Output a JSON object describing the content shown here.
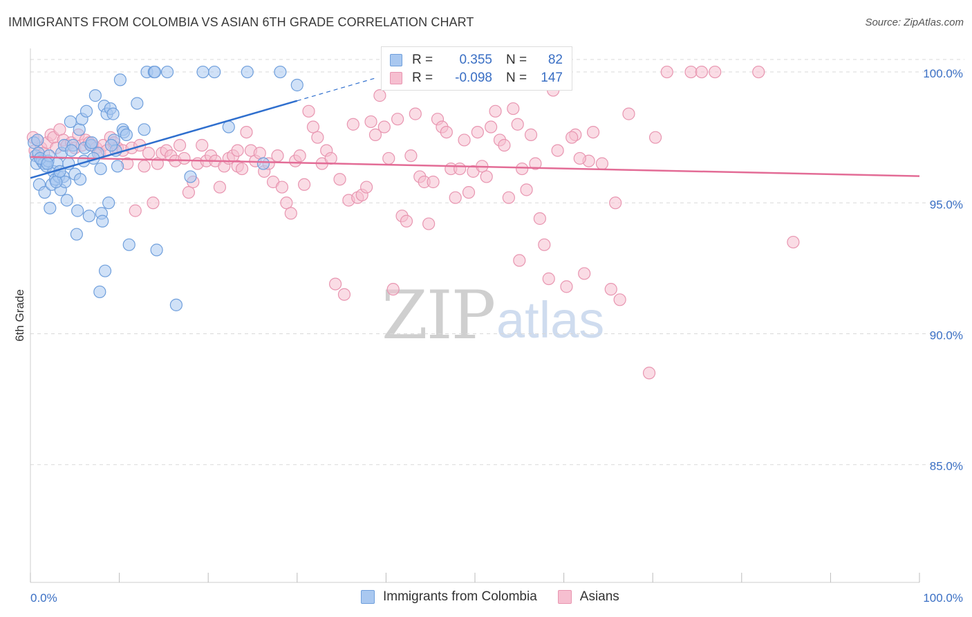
{
  "title": "IMMIGRANTS FROM COLOMBIA VS ASIAN 6TH GRADE CORRELATION CHART",
  "source": "Source: ZipAtlas.com",
  "watermark": {
    "zip": "ZIP",
    "atlas": "atlas"
  },
  "legend": {
    "rows": [
      {
        "r_label": "R =",
        "r_value": "0.355",
        "n_label": "N =",
        "n_value": "82"
      },
      {
        "r_label": "R =",
        "r_value": "-0.098",
        "n_label": "N =",
        "n_value": "147"
      }
    ]
  },
  "bottom_legend": [
    "Immigrants from Colombia",
    "Asians"
  ],
  "colors": {
    "blue_fill": "#a9c8f0",
    "blue_stroke": "#6f9fdc",
    "blue_line": "#2f6fce",
    "pink_fill": "#f6bfd0",
    "pink_stroke": "#e895b0",
    "pink_line": "#e36c96",
    "label": "#3a6fc4",
    "grid": "#d9d9d9"
  },
  "chart_data": {
    "type": "scatter",
    "title": "IMMIGRANTS FROM COLOMBIA VS ASIAN 6TH GRADE CORRELATION CHART",
    "xlabel": "",
    "ylabel": "6th Grade",
    "xlim": [
      0,
      100
    ],
    "ylim": [
      80.5,
      100.9
    ],
    "x_tick_labels": [
      "0.0%",
      "100.0%"
    ],
    "y_ticks": [
      100,
      95,
      90,
      85
    ],
    "y_tick_labels": [
      "100.0%",
      "95.0%",
      "90.0%",
      "85.0%"
    ],
    "series": [
      {
        "name": "Immigrants from Colombia",
        "points": [
          [
            0.4,
            97.3
          ],
          [
            0.6,
            96.8
          ],
          [
            0.7,
            96.5
          ],
          [
            0.9,
            96.9
          ],
          [
            1.0,
            95.7
          ],
          [
            1.3,
            96.6
          ],
          [
            1.5,
            96.5
          ],
          [
            1.6,
            95.4
          ],
          [
            1.8,
            96.4
          ],
          [
            2.0,
            96.6
          ],
          [
            2.2,
            94.8
          ],
          [
            2.4,
            95.7
          ],
          [
            2.6,
            96.2
          ],
          [
            2.8,
            95.9
          ],
          [
            3.0,
            96.5
          ],
          [
            3.2,
            96.0
          ],
          [
            3.4,
            95.5
          ],
          [
            3.5,
            96.9
          ],
          [
            3.7,
            96.0
          ],
          [
            3.8,
            97.2
          ],
          [
            3.9,
            95.8
          ],
          [
            4.1,
            95.1
          ],
          [
            4.3,
            96.5
          ],
          [
            4.5,
            98.1
          ],
          [
            4.8,
            97.2
          ],
          [
            5.0,
            96.1
          ],
          [
            5.2,
            93.8
          ],
          [
            5.3,
            94.7
          ],
          [
            5.5,
            97.8
          ],
          [
            5.6,
            95.9
          ],
          [
            5.8,
            98.2
          ],
          [
            6.0,
            96.6
          ],
          [
            6.1,
            97.1
          ],
          [
            6.3,
            98.5
          ],
          [
            6.6,
            94.5
          ],
          [
            6.8,
            97.2
          ],
          [
            7.3,
            99.1
          ],
          [
            7.6,
            96.9
          ],
          [
            7.8,
            91.6
          ],
          [
            7.9,
            96.3
          ],
          [
            8.0,
            94.6
          ],
          [
            8.1,
            94.3
          ],
          [
            8.3,
            98.7
          ],
          [
            8.4,
            92.4
          ],
          [
            8.6,
            98.4
          ],
          [
            8.8,
            95.0
          ],
          [
            9.0,
            98.6
          ],
          [
            9.3,
            98.4
          ],
          [
            9.4,
            97.4
          ],
          [
            9.6,
            97.0
          ],
          [
            9.8,
            96.4
          ],
          [
            10.1,
            99.7
          ],
          [
            10.4,
            97.8
          ],
          [
            10.5,
            97.7
          ],
          [
            11.1,
            93.4
          ],
          [
            12.0,
            98.8
          ],
          [
            12.8,
            97.8
          ],
          [
            13.1,
            100.0
          ],
          [
            13.9,
            100.0
          ],
          [
            14.0,
            100.0
          ],
          [
            14.2,
            93.2
          ],
          [
            15.4,
            100.0
          ],
          [
            16.4,
            91.1
          ],
          [
            18.0,
            96.0
          ],
          [
            19.4,
            100.0
          ],
          [
            20.7,
            100.0
          ],
          [
            22.3,
            97.9
          ],
          [
            24.4,
            100.0
          ],
          [
            26.2,
            96.5
          ],
          [
            28.1,
            100.0
          ],
          [
            30.0,
            99.5
          ],
          [
            1.1,
            96.7
          ],
          [
            2.1,
            96.8
          ],
          [
            2.9,
            95.8
          ],
          [
            3.3,
            96.2
          ],
          [
            6.9,
            97.3
          ],
          [
            7.1,
            96.7
          ],
          [
            9.1,
            97.2
          ],
          [
            0.8,
            97.4
          ],
          [
            1.9,
            96.5
          ],
          [
            4.6,
            97.0
          ],
          [
            10.8,
            97.6
          ]
        ]
      },
      {
        "name": "Asians",
        "points": [
          [
            0.3,
            97.5
          ],
          [
            0.5,
            97.0
          ],
          [
            0.8,
            97.4
          ],
          [
            1.2,
            97.1
          ],
          [
            1.5,
            96.9
          ],
          [
            1.9,
            97.3
          ],
          [
            2.3,
            97.6
          ],
          [
            2.6,
            97.5
          ],
          [
            2.9,
            97.1
          ],
          [
            3.3,
            97.8
          ],
          [
            3.7,
            97.4
          ],
          [
            4.1,
            97.2
          ],
          [
            4.6,
            97.3
          ],
          [
            5.0,
            97.1
          ],
          [
            5.4,
            97.6
          ],
          [
            5.8,
            97.2
          ],
          [
            6.2,
            97.4
          ],
          [
            6.6,
            97.3
          ],
          [
            7.0,
            97.2
          ],
          [
            7.4,
            97.1
          ],
          [
            7.8,
            96.9
          ],
          [
            8.2,
            97.2
          ],
          [
            8.6,
            97.0
          ],
          [
            9.0,
            97.5
          ],
          [
            9.4,
            97.3
          ],
          [
            9.8,
            97.1
          ],
          [
            10.4,
            97.0
          ],
          [
            10.9,
            96.5
          ],
          [
            11.4,
            97.1
          ],
          [
            11.8,
            94.7
          ],
          [
            12.3,
            97.2
          ],
          [
            12.8,
            96.4
          ],
          [
            13.3,
            96.9
          ],
          [
            13.8,
            95.0
          ],
          [
            14.3,
            96.5
          ],
          [
            14.8,
            96.9
          ],
          [
            15.3,
            97.0
          ],
          [
            15.8,
            96.8
          ],
          [
            16.3,
            96.6
          ],
          [
            16.8,
            97.2
          ],
          [
            17.3,
            96.7
          ],
          [
            17.8,
            95.4
          ],
          [
            18.3,
            95.8
          ],
          [
            18.8,
            96.5
          ],
          [
            19.3,
            97.2
          ],
          [
            19.8,
            96.6
          ],
          [
            20.3,
            96.8
          ],
          [
            20.8,
            96.6
          ],
          [
            21.3,
            95.6
          ],
          [
            21.8,
            96.4
          ],
          [
            22.3,
            96.7
          ],
          [
            22.8,
            96.8
          ],
          [
            23.3,
            96.4
          ],
          [
            23.8,
            96.3
          ],
          [
            24.3,
            97.7
          ],
          [
            24.8,
            97.0
          ],
          [
            25.3,
            96.6
          ],
          [
            25.8,
            96.9
          ],
          [
            26.3,
            96.2
          ],
          [
            26.8,
            96.5
          ],
          [
            27.3,
            95.8
          ],
          [
            27.8,
            96.8
          ],
          [
            28.3,
            95.6
          ],
          [
            28.8,
            95.0
          ],
          [
            29.3,
            94.6
          ],
          [
            29.8,
            96.6
          ],
          [
            30.3,
            96.8
          ],
          [
            30.8,
            95.7
          ],
          [
            31.3,
            98.5
          ],
          [
            31.8,
            97.9
          ],
          [
            32.3,
            97.5
          ],
          [
            32.8,
            96.5
          ],
          [
            33.3,
            97.0
          ],
          [
            33.8,
            96.7
          ],
          [
            34.3,
            91.9
          ],
          [
            34.8,
            95.9
          ],
          [
            35.3,
            91.5
          ],
          [
            35.8,
            95.1
          ],
          [
            36.3,
            98.0
          ],
          [
            36.8,
            95.2
          ],
          [
            37.3,
            95.3
          ],
          [
            37.8,
            95.6
          ],
          [
            38.3,
            98.1
          ],
          [
            38.8,
            97.6
          ],
          [
            39.3,
            99.1
          ],
          [
            39.8,
            97.9
          ],
          [
            40.3,
            96.7
          ],
          [
            40.8,
            91.7
          ],
          [
            41.3,
            98.2
          ],
          [
            41.8,
            94.5
          ],
          [
            42.3,
            94.3
          ],
          [
            42.8,
            96.8
          ],
          [
            43.3,
            98.4
          ],
          [
            43.8,
            96.0
          ],
          [
            44.3,
            95.8
          ],
          [
            44.8,
            94.2
          ],
          [
            45.3,
            95.8
          ],
          [
            45.8,
            98.2
          ],
          [
            46.3,
            97.9
          ],
          [
            46.8,
            97.7
          ],
          [
            47.3,
            96.3
          ],
          [
            47.8,
            95.2
          ],
          [
            48.3,
            96.3
          ],
          [
            48.8,
            97.4
          ],
          [
            49.3,
            95.4
          ],
          [
            49.8,
            96.2
          ],
          [
            50.3,
            97.7
          ],
          [
            50.8,
            96.4
          ],
          [
            51.3,
            96.0
          ],
          [
            51.8,
            97.9
          ],
          [
            52.3,
            98.5
          ],
          [
            52.8,
            97.4
          ],
          [
            53.3,
            97.2
          ],
          [
            53.8,
            95.2
          ],
          [
            54.3,
            98.6
          ],
          [
            54.8,
            98.0
          ],
          [
            55.3,
            96.3
          ],
          [
            55.8,
            95.5
          ],
          [
            56.3,
            97.6
          ],
          [
            56.8,
            96.5
          ],
          [
            57.3,
            94.4
          ],
          [
            57.8,
            93.4
          ],
          [
            58.3,
            92.1
          ],
          [
            58.8,
            99.3
          ],
          [
            59.3,
            97.0
          ],
          [
            60.3,
            91.8
          ],
          [
            61.3,
            97.6
          ],
          [
            62.3,
            92.3
          ],
          [
            63.3,
            97.7
          ],
          [
            64.3,
            96.5
          ],
          [
            65.3,
            91.7
          ],
          [
            66.3,
            91.3
          ],
          [
            67.3,
            98.4
          ],
          [
            69.6,
            88.5
          ],
          [
            70.3,
            97.5
          ],
          [
            71.6,
            100.0
          ],
          [
            74.3,
            100.0
          ],
          [
            75.5,
            100.0
          ],
          [
            77.0,
            100.0
          ],
          [
            81.9,
            100.0
          ],
          [
            85.8,
            93.5
          ],
          [
            62.8,
            96.6
          ],
          [
            65.8,
            95.0
          ],
          [
            61.8,
            96.7
          ],
          [
            60.9,
            97.5
          ],
          [
            23.3,
            97.0
          ],
          [
            55.0,
            92.8
          ]
        ]
      }
    ],
    "trend_lines": [
      {
        "name": "Immigrants from Colombia",
        "x": [
          0,
          30
        ],
        "y": [
          95.95,
          98.9
        ],
        "dashed_extension_to_x": 39
      },
      {
        "name": "Asians",
        "x": [
          0,
          100
        ],
        "y": [
          96.75,
          96.02
        ]
      }
    ]
  }
}
